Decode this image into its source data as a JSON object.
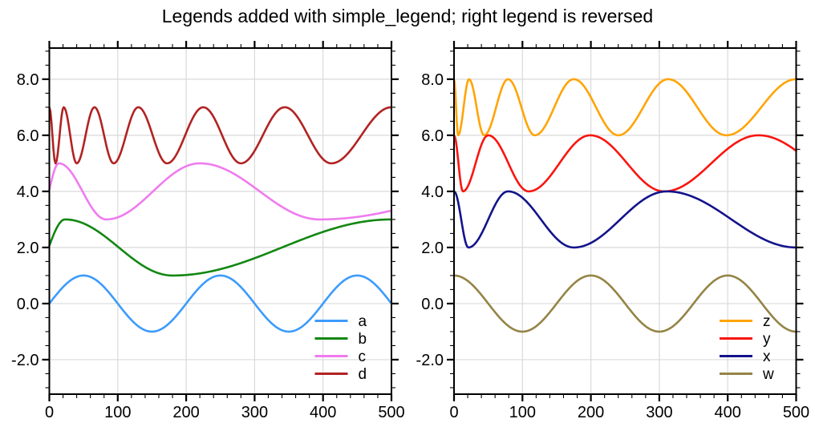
{
  "title": "Legends added with simple_legend; right legend is reversed",
  "chart_data": [
    {
      "id": "left",
      "type": "line",
      "x": {
        "min": 0,
        "max": 500,
        "major_ticks": [
          0,
          100,
          200,
          300,
          400,
          500
        ],
        "tick_labels": [
          "0",
          "100",
          "200",
          "300",
          "400",
          "500"
        ],
        "minor_step": 20
      },
      "y": {
        "min": -3.23,
        "max": 9.11,
        "major_ticks": [
          -2,
          0,
          2,
          4,
          6,
          8
        ],
        "tick_labels": [
          "-2.0",
          "0.0",
          "2.0",
          "4.0",
          "6.0",
          "8.0"
        ],
        "minor_step": 0.5
      },
      "grid": true,
      "legend": {
        "position": "bottom-right",
        "entries": [
          "a",
          "b",
          "c",
          "d"
        ]
      },
      "series": [
        {
          "name": "a",
          "color": "#3C9BFC",
          "description": "sine wave, offset 0, amplitude 1, period 200",
          "extrema_keypoints": [
            [
              -50,
              -1
            ],
            [
              50,
              1
            ],
            [
              150,
              -1
            ],
            [
              250,
              1
            ],
            [
              350,
              -1
            ],
            [
              450,
              1
            ],
            [
              550,
              -1
            ]
          ]
        },
        {
          "name": "b",
          "color": "#128712",
          "description": "slow chirp around 2, amplitude 1",
          "extrema_keypoints": [
            [
              -25,
              1
            ],
            [
              23,
              3
            ],
            [
              180,
              1
            ],
            [
              500,
              3
            ]
          ]
        },
        {
          "name": "c",
          "color": "#EF7BEF",
          "description": "slow chirp around 4, amplitude 1",
          "extrema_keypoints": [
            [
              -15,
              3
            ],
            [
              14,
              5
            ],
            [
              83,
              3
            ],
            [
              220,
              5
            ],
            [
              395,
              3
            ],
            [
              800,
              5
            ]
          ]
        },
        {
          "name": "d",
          "color": "#B22222",
          "description": "decreasing-frequency chirp around 6, amplitude 1",
          "extrema_keypoints": [
            [
              0,
              7
            ],
            [
              9,
              5
            ],
            [
              21,
              7
            ],
            [
              40,
              5
            ],
            [
              66,
              7
            ],
            [
              94,
              5
            ],
            [
              130,
              7
            ],
            [
              172,
              5
            ],
            [
              225,
              7
            ],
            [
              280,
              5
            ],
            [
              344,
              7
            ],
            [
              412,
              5
            ],
            [
              500,
              7
            ]
          ]
        }
      ]
    },
    {
      "id": "right",
      "type": "line",
      "x": {
        "min": 0,
        "max": 500,
        "major_ticks": [
          0,
          100,
          200,
          300,
          400,
          500
        ],
        "tick_labels": [
          "0",
          "100",
          "200",
          "300",
          "400",
          "500"
        ],
        "minor_step": 20
      },
      "y": {
        "min": -3.23,
        "max": 9.11,
        "major_ticks": [
          -2,
          0,
          2,
          4,
          6,
          8
        ],
        "tick_labels": [
          "-2.0",
          "0.0",
          "2.0",
          "4.0",
          "6.0",
          "8.0"
        ],
        "minor_step": 0.5
      },
      "grid": true,
      "legend": {
        "position": "bottom-right",
        "entries": [
          "z",
          "y",
          "x",
          "w"
        ],
        "note": "reversed order"
      },
      "series": [
        {
          "name": "z",
          "color": "#FFA405",
          "description": "decreasing-frequency chirp around 7, amplitude 1",
          "extrema_keypoints": [
            [
              0,
              8
            ],
            [
              6,
              6
            ],
            [
              22,
              8
            ],
            [
              44,
              6
            ],
            [
              79,
              8
            ],
            [
              118,
              6
            ],
            [
              175,
              8
            ],
            [
              240,
              6
            ],
            [
              313,
              8
            ],
            [
              398,
              6
            ],
            [
              500,
              8
            ]
          ]
        },
        {
          "name": "y",
          "color": "#F91510",
          "description": "decreasing-frequency chirp around 5, amplitude 1",
          "extrema_keypoints": [
            [
              0,
              6
            ],
            [
              13,
              4
            ],
            [
              50,
              6
            ],
            [
              109,
              4
            ],
            [
              199,
              6
            ],
            [
              307,
              4
            ],
            [
              445,
              6
            ],
            [
              601,
              4
            ]
          ]
        },
        {
          "name": "x",
          "color": "#13138C",
          "description": "decreasing-frequency chirp around 3, amplitude 1",
          "extrema_keypoints": [
            [
              0,
              4
            ],
            [
              21,
              2
            ],
            [
              79,
              4
            ],
            [
              175,
              2
            ],
            [
              311,
              4
            ],
            [
              500,
              2
            ]
          ]
        },
        {
          "name": "w",
          "color": "#948445",
          "description": "cosine wave, offset 0, amplitude 1, period 200",
          "extrema_keypoints": [
            [
              0,
              1
            ],
            [
              100,
              -1
            ],
            [
              200,
              1
            ],
            [
              300,
              -1
            ],
            [
              400,
              1
            ],
            [
              500,
              -1
            ]
          ]
        }
      ]
    }
  ]
}
